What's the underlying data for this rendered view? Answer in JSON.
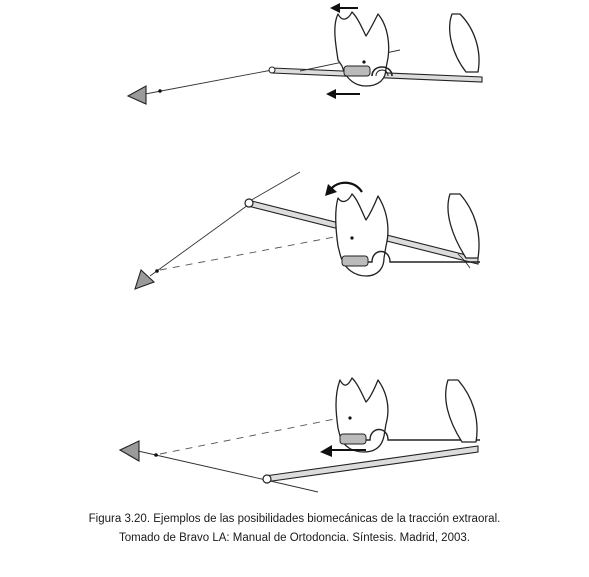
{
  "caption": {
    "line1": "Figura 3.20. Ejemplos de las posibilidades biomecánicas de la tracción extraoral.",
    "line2": "Tomado de Bravo LA: Manual de Ortodoncia. Síntesis. Madrid, 2003."
  },
  "panels": [
    {
      "id": "top",
      "arrow_icons": [
        "arrow-left-icon",
        "arrow-left-icon"
      ]
    },
    {
      "id": "middle",
      "arrow_icons": [
        "rotation-arrow-icon"
      ]
    },
    {
      "id": "bottom",
      "arrow_icons": [
        "arrow-left-icon"
      ]
    }
  ]
}
